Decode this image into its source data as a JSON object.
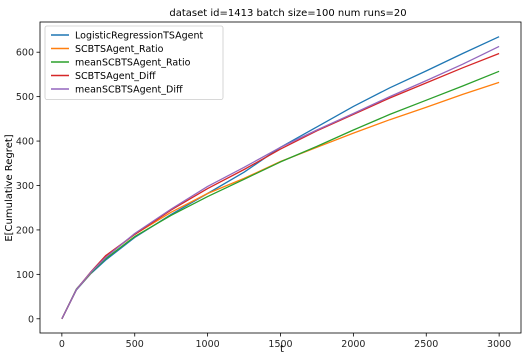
{
  "chart_data": {
    "type": "line",
    "title": "dataset id=1413 batch size=100 num runs=20",
    "xlabel": "t",
    "ylabel": "E[Cumulative Regret]",
    "xlim": [
      -150,
      3150
    ],
    "ylim": [
      -32,
      668
    ],
    "xticks": [
      0,
      500,
      1000,
      1500,
      2000,
      2500,
      3000
    ],
    "yticks": [
      0,
      100,
      200,
      300,
      400,
      500,
      600
    ],
    "grid": false,
    "legend_position": "top-left",
    "x": [
      0,
      100,
      200,
      300,
      500,
      750,
      1000,
      1250,
      1500,
      1750,
      2000,
      2250,
      2500,
      2750,
      3000
    ],
    "series": [
      {
        "name": "LogisticRegressionTSAgent",
        "color": "#1f77b4",
        "values": [
          0,
          65,
          102,
          132,
          183,
          235,
          282,
          330,
          386,
          432,
          478,
          520,
          558,
          597,
          635
        ]
      },
      {
        "name": "SCBTSAgent_Ratio",
        "color": "#ff7f0e",
        "values": [
          0,
          66,
          103,
          140,
          190,
          240,
          282,
          316,
          354,
          386,
          418,
          448,
          476,
          505,
          532
        ]
      },
      {
        "name": "meanSCBTSAgent_Ratio",
        "color": "#2ca02c",
        "values": [
          0,
          67,
          104,
          135,
          185,
          233,
          275,
          314,
          353,
          388,
          425,
          460,
          492,
          524,
          557
        ]
      },
      {
        "name": "SCBTSAgent_Diff",
        "color": "#d62728",
        "values": [
          0,
          66,
          106,
          142,
          190,
          245,
          293,
          336,
          382,
          423,
          460,
          497,
          531,
          565,
          597
        ]
      },
      {
        "name": "meanSCBTSAgent_Diff",
        "color": "#9467bd",
        "values": [
          0,
          66,
          105,
          138,
          192,
          247,
          298,
          341,
          386,
          425,
          462,
          500,
          536,
          573,
          613
        ]
      }
    ]
  }
}
